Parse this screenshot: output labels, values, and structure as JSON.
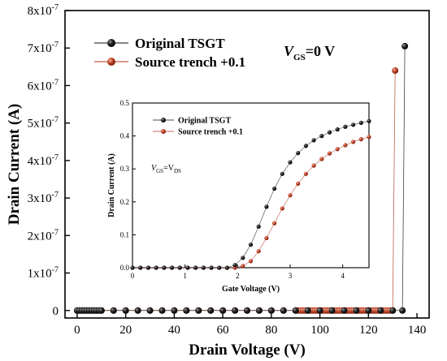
{
  "chart_data": [
    {
      "type": "scatter",
      "title": "",
      "xlabel": "Drain Voltage (V)",
      "ylabel": "Drain Current (A)",
      "xlim": [
        -5,
        145
      ],
      "ylim": [
        -2e-08,
        8e-07
      ],
      "x_ticks": [
        0,
        20,
        40,
        60,
        80,
        100,
        120,
        140
      ],
      "x_tick_labels": [
        "0",
        "20",
        "40",
        "60",
        "80",
        "100",
        "120",
        "140"
      ],
      "y_ticks": [
        0,
        1e-07,
        2e-07,
        3e-07,
        4e-07,
        5e-07,
        6e-07,
        7e-07,
        8e-07
      ],
      "y_tick_mantissas": [
        "0",
        "1x10",
        "2x10",
        "3x10",
        "4x10",
        "5x10",
        "6x10",
        "7x10",
        "8x10"
      ],
      "y_tick_exponent": "-7",
      "annotation": {
        "main": "V",
        "sub": "GS",
        "rest": "=0 V"
      },
      "legend_position": "top-left",
      "grid": false,
      "series": [
        {
          "name": "Original TSGT",
          "color": "#111111",
          "x": [
            0,
            1,
            2,
            3,
            4,
            5,
            6,
            7,
            8,
            9,
            10,
            15,
            20,
            25,
            30,
            35,
            40,
            45,
            50,
            55,
            60,
            65,
            70,
            75,
            80,
            85,
            90,
            95,
            100,
            105,
            110,
            115,
            120,
            125,
            130,
            134,
            135
          ],
          "y": [
            0,
            0,
            0,
            0,
            0,
            0,
            0,
            0,
            0,
            0,
            0,
            0,
            0,
            0,
            0,
            0,
            0,
            0,
            0,
            0,
            0,
            0,
            0,
            0,
            0,
            0,
            0,
            0,
            0,
            0,
            0,
            0,
            0,
            0,
            0,
            0,
            7.05e-07
          ]
        },
        {
          "name": "Source trench +0.1",
          "color": "#b23a1f",
          "x": [
            0,
            1,
            2,
            3,
            4,
            5,
            6,
            7,
            8,
            9,
            10,
            15,
            20,
            25,
            30,
            35,
            40,
            45,
            50,
            55,
            60,
            65,
            70,
            75,
            80,
            85,
            90,
            91,
            92,
            93,
            94,
            95,
            96,
            97,
            98,
            99,
            100,
            101,
            102,
            103,
            104,
            105,
            106,
            107,
            108,
            109,
            110,
            111,
            112,
            113,
            114,
            115,
            116,
            117,
            118,
            119,
            120,
            121,
            122,
            123,
            124,
            125,
            126,
            127,
            128,
            129,
            130,
            131
          ],
          "y": [
            0,
            0,
            0,
            0,
            0,
            0,
            0,
            0,
            0,
            0,
            0,
            0,
            0,
            0,
            0,
            0,
            0,
            0,
            0,
            0,
            0,
            0,
            0,
            0,
            0,
            0,
            0,
            0,
            0,
            0,
            0,
            0,
            0,
            0,
            0,
            0,
            0,
            0,
            0,
            0,
            0,
            0,
            0,
            0,
            0,
            0,
            0,
            0,
            0,
            0,
            0,
            0,
            0,
            0,
            0,
            0,
            0,
            0,
            0,
            0,
            0,
            0,
            0,
            0,
            0,
            0,
            0,
            6.4e-07
          ]
        }
      ]
    },
    {
      "type": "scatter",
      "title": "",
      "xlabel": "Gate Voltage (V)",
      "ylabel": "Drain Current (A)",
      "xlim": [
        0,
        4.5
      ],
      "ylim": [
        0,
        0.5
      ],
      "x_ticks": [
        0,
        1,
        2,
        3,
        4
      ],
      "x_tick_labels": [
        "0",
        "1",
        "2",
        "3",
        "4"
      ],
      "y_ticks": [
        0,
        0.1,
        0.2,
        0.3,
        0.4,
        0.5
      ],
      "y_tick_labels": [
        "0.0",
        "0.1",
        "0.2",
        "0.3",
        "0.4",
        "0.5"
      ],
      "annotation": {
        "main": "V",
        "sub": "GS",
        "mid": "=V",
        "sub2": "DS"
      },
      "legend_position": "top-left",
      "grid": false,
      "series": [
        {
          "name": "Original TSGT",
          "color": "#111111",
          "x": [
            0,
            0.15,
            0.3,
            0.45,
            0.6,
            0.75,
            0.9,
            1.05,
            1.2,
            1.35,
            1.5,
            1.65,
            1.8,
            1.95,
            2.1,
            2.25,
            2.4,
            2.55,
            2.7,
            2.85,
            3.0,
            3.15,
            3.3,
            3.45,
            3.6,
            3.75,
            3.9,
            4.05,
            4.2,
            4.35,
            4.5
          ],
          "y": [
            0,
            0,
            0,
            0,
            0,
            0,
            0,
            0,
            0,
            0,
            0,
            0,
            0,
            0.008,
            0.03,
            0.07,
            0.125,
            0.185,
            0.24,
            0.285,
            0.32,
            0.348,
            0.37,
            0.387,
            0.4,
            0.411,
            0.42,
            0.428,
            0.434,
            0.44,
            0.445
          ]
        },
        {
          "name": "Source trench +0.1",
          "color": "#b23a1f",
          "x": [
            0,
            0.15,
            0.3,
            0.45,
            0.6,
            0.75,
            0.9,
            1.05,
            1.2,
            1.35,
            1.5,
            1.65,
            1.8,
            1.95,
            2.1,
            2.25,
            2.4,
            2.55,
            2.7,
            2.85,
            3.0,
            3.15,
            3.3,
            3.45,
            3.6,
            3.75,
            3.9,
            4.05,
            4.2,
            4.35,
            4.5
          ],
          "y": [
            0,
            0,
            0,
            0,
            0,
            0,
            0,
            0,
            0,
            0,
            0,
            0,
            0,
            0,
            0.005,
            0.02,
            0.05,
            0.09,
            0.135,
            0.18,
            0.22,
            0.255,
            0.285,
            0.31,
            0.33,
            0.347,
            0.36,
            0.372,
            0.382,
            0.39,
            0.397
          ]
        }
      ]
    }
  ]
}
